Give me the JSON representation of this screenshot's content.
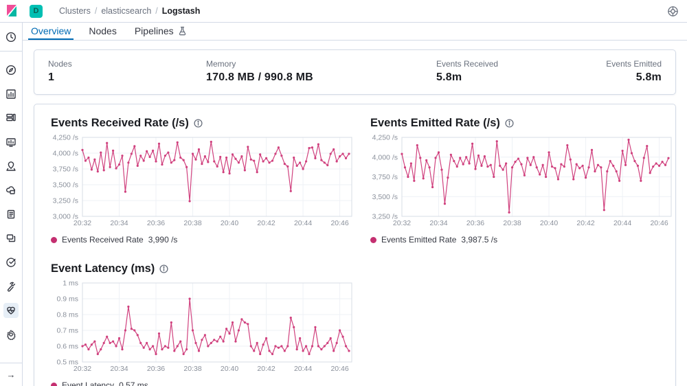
{
  "header": {
    "space_badge": "D",
    "breadcrumbs": [
      "Clusters",
      "elasticsearch",
      "Logstash"
    ]
  },
  "tabs": [
    {
      "label": "Overview",
      "active": true
    },
    {
      "label": "Nodes",
      "active": false
    },
    {
      "label": "Pipelines",
      "active": false
    }
  ],
  "summary": {
    "stats": [
      {
        "label": "Nodes",
        "value": "1"
      },
      {
        "label": "Memory",
        "value": "170.8 MB / 990.8 MB"
      },
      {
        "label": "Events Received",
        "value": "5.8m"
      },
      {
        "label": "Events Emitted",
        "value": "5.8m"
      }
    ]
  },
  "colors": {
    "accent": "#006bb4",
    "line": "#d0417e",
    "legend_dot": "#c42f70",
    "grid": "#eef1f6",
    "plot_border": "#d7dce6",
    "tick_text": "#8a909b",
    "kibana_pink": "#f04e98",
    "kibana_teal": "#00bfb3",
    "badge_bg": "#00bfb3"
  },
  "chart_data": [
    {
      "type": "line",
      "title": "Events Received Rate (/s)",
      "legend_label": "Events Received Rate",
      "legend_value": "3,990 /s",
      "ylim": [
        3000,
        4250
      ],
      "yticks": [
        {
          "v": 4250,
          "label": "4,250 /s"
        },
        {
          "v": 4000,
          "label": "4,000 /s"
        },
        {
          "v": 3750,
          "label": "3,750 /s"
        },
        {
          "v": 3500,
          "label": "3,500 /s"
        },
        {
          "v": 3250,
          "label": "3,250 /s"
        },
        {
          "v": 3000,
          "label": "3,000 /s"
        }
      ],
      "xlim": [
        0,
        14.65
      ],
      "xticks": [
        {
          "v": 0,
          "label": "20:32"
        },
        {
          "v": 2,
          "label": "20:34"
        },
        {
          "v": 4,
          "label": "20:36"
        },
        {
          "v": 6,
          "label": "20:38"
        },
        {
          "v": 8,
          "label": "20:40"
        },
        {
          "v": 10,
          "label": "20:42"
        },
        {
          "v": 12,
          "label": "20:44"
        },
        {
          "v": 14,
          "label": "20:46"
        }
      ],
      "x_step_minutes": 0.16667,
      "values": [
        4050,
        3880,
        3930,
        3740,
        3900,
        3710,
        4010,
        3730,
        4160,
        3780,
        4040,
        3760,
        3820,
        3960,
        3390,
        3850,
        3990,
        4110,
        3800,
        3960,
        3880,
        4030,
        3940,
        4040,
        3870,
        4150,
        3820,
        3960,
        4010,
        3850,
        3890,
        4170,
        3930,
        3890,
        3780,
        3240,
        3990,
        3900,
        4060,
        3830,
        3950,
        3860,
        4180,
        3870,
        3790,
        3940,
        3700,
        3930,
        3680,
        3980,
        3910,
        3850,
        3950,
        3730,
        4100,
        3900,
        3880,
        3700,
        3980,
        3870,
        3920,
        3850,
        3880,
        3990,
        4090,
        3960,
        3830,
        3790,
        3400,
        3930,
        3800,
        3850,
        3750,
        3870,
        4080,
        4090,
        3920,
        4140,
        3890,
        3850,
        3810,
        3990,
        4060,
        3870,
        3950,
        3990,
        3920,
        3990
      ]
    },
    {
      "type": "line",
      "title": "Events Emitted Rate (/s)",
      "legend_label": "Events Emitted Rate",
      "legend_value": "3,987.5 /s",
      "ylim": [
        3250,
        4250
      ],
      "yticks": [
        {
          "v": 4250,
          "label": "4,250 /s"
        },
        {
          "v": 4000,
          "label": "4,000 /s"
        },
        {
          "v": 3750,
          "label": "3,750 /s"
        },
        {
          "v": 3500,
          "label": "3,500 /s"
        },
        {
          "v": 3250,
          "label": "3,250 /s"
        }
      ],
      "xlim": [
        0,
        14.65
      ],
      "xticks": [
        {
          "v": 0,
          "label": "20:32"
        },
        {
          "v": 2,
          "label": "20:34"
        },
        {
          "v": 4,
          "label": "20:36"
        },
        {
          "v": 6,
          "label": "20:38"
        },
        {
          "v": 8,
          "label": "20:40"
        },
        {
          "v": 10,
          "label": "20:42"
        },
        {
          "v": 12,
          "label": "20:44"
        },
        {
          "v": 14,
          "label": "20:46"
        }
      ],
      "x_step_minutes": 0.16667,
      "values": [
        4040,
        3870,
        3750,
        3920,
        3700,
        4150,
        3990,
        3730,
        3960,
        3870,
        3620,
        3990,
        4060,
        3840,
        3410,
        3740,
        4030,
        3950,
        3880,
        3990,
        3910,
        4000,
        3920,
        4170,
        3850,
        4020,
        3890,
        4010,
        3880,
        3900,
        3750,
        4200,
        3890,
        3840,
        3920,
        3300,
        3870,
        3940,
        3980,
        3910,
        3770,
        3990,
        3900,
        4000,
        3870,
        3780,
        3900,
        3750,
        4060,
        3880,
        3860,
        3720,
        3910,
        3880,
        4150,
        3970,
        3720,
        3910,
        3860,
        3890,
        3740,
        3870,
        4090,
        3820,
        3900,
        3870,
        3330,
        3820,
        3950,
        3890,
        3820,
        3700,
        4080,
        3900,
        4220,
        4050,
        3950,
        3890,
        3700,
        3990,
        4140,
        3800,
        3880,
        3920,
        3890,
        3940,
        3900,
        3987.5
      ]
    },
    {
      "type": "line",
      "title": "Event Latency (ms)",
      "legend_label": "Event Latency",
      "legend_value": "0.57 ms",
      "ylim": [
        0.5,
        1.0
      ],
      "yticks": [
        {
          "v": 1.0,
          "label": "1 ms"
        },
        {
          "v": 0.9,
          "label": "0.9 ms"
        },
        {
          "v": 0.8,
          "label": "0.8 ms"
        },
        {
          "v": 0.7,
          "label": "0.7 ms"
        },
        {
          "v": 0.6,
          "label": "0.6 ms"
        },
        {
          "v": 0.5,
          "label": "0.5 ms"
        }
      ],
      "xlim": [
        0,
        14.65
      ],
      "xticks": [
        {
          "v": 0,
          "label": "20:32"
        },
        {
          "v": 2,
          "label": "20:34"
        },
        {
          "v": 4,
          "label": "20:36"
        },
        {
          "v": 6,
          "label": "20:38"
        },
        {
          "v": 8,
          "label": "20:40"
        },
        {
          "v": 10,
          "label": "20:42"
        },
        {
          "v": 12,
          "label": "20:44"
        },
        {
          "v": 14,
          "label": "20:46"
        }
      ],
      "x_step_minutes": 0.16667,
      "values": [
        0.6,
        0.61,
        0.58,
        0.61,
        0.63,
        0.55,
        0.58,
        0.62,
        0.66,
        0.62,
        0.63,
        0.6,
        0.65,
        0.58,
        0.7,
        0.85,
        0.71,
        0.7,
        0.67,
        0.62,
        0.59,
        0.62,
        0.58,
        0.6,
        0.55,
        0.68,
        0.58,
        0.6,
        0.59,
        0.75,
        0.57,
        0.6,
        0.63,
        0.55,
        0.58,
        0.9,
        0.7,
        0.62,
        0.57,
        0.64,
        0.67,
        0.6,
        0.62,
        0.64,
        0.63,
        0.66,
        0.63,
        0.71,
        0.68,
        0.75,
        0.63,
        0.7,
        0.77,
        0.75,
        0.74,
        0.6,
        0.57,
        0.62,
        0.55,
        0.61,
        0.65,
        0.57,
        0.55,
        0.6,
        0.59,
        0.6,
        0.57,
        0.6,
        0.78,
        0.72,
        0.58,
        0.65,
        0.57,
        0.6,
        0.55,
        0.6,
        0.72,
        0.6,
        0.58,
        0.6,
        0.62,
        0.65,
        0.57,
        0.62,
        0.7,
        0.66,
        0.6,
        0.57
      ]
    }
  ]
}
